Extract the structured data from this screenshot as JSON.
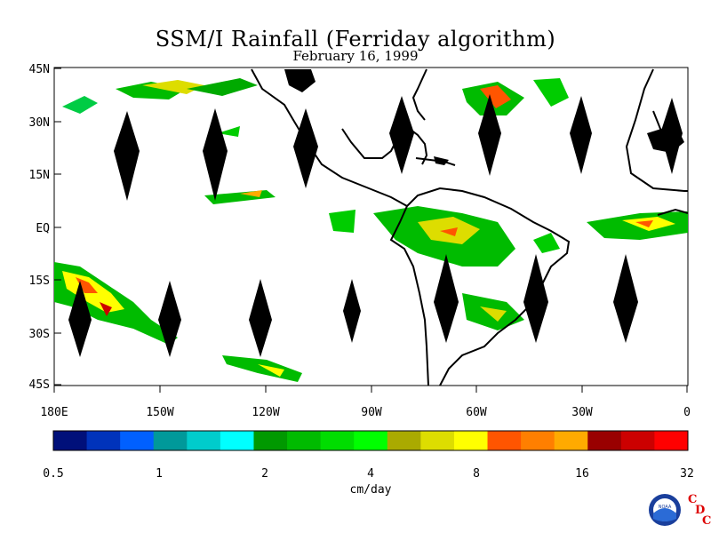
{
  "title": "SSM/I Rainfall (Ferriday algorithm)",
  "subtitle": "February 16, 1999",
  "map": {
    "lat_labels": [
      "45N",
      "30N",
      "15N",
      "EQ",
      "15S",
      "30S",
      "45S"
    ],
    "lon_labels": [
      "180E",
      "150W",
      "120W",
      "90W",
      "60W",
      "30W",
      "0"
    ],
    "land_color": "#000000",
    "missing_swath_color": "#000000"
  },
  "colorbar": {
    "unit_label": "cm/day",
    "tick_labels": [
      "0.5",
      "1",
      "2",
      "4",
      "8",
      "16",
      "32"
    ],
    "colors": [
      "#00107a",
      "#0033bb",
      "#0060ff",
      "#00999a",
      "#00cccc",
      "#00ffff",
      "#009900",
      "#00bb00",
      "#00dd00",
      "#00ff00",
      "#aaaa00",
      "#dddd00",
      "#ffff00",
      "#ff5500",
      "#ff7f00",
      "#ffaa00",
      "#990000",
      "#cc0000",
      "#ff0000"
    ]
  },
  "logo": {
    "noaa_text": "NOAA",
    "cdc_letters": [
      "C",
      "D",
      "C"
    ]
  }
}
